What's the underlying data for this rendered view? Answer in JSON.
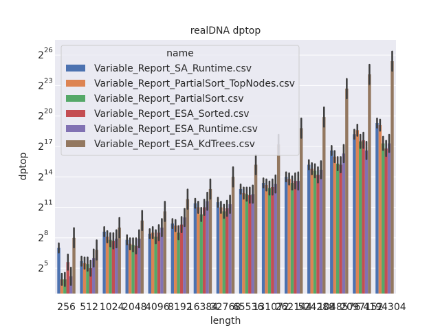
{
  "chart_data": {
    "type": "bar",
    "title": "realDNA dptop",
    "xlabel": "length",
    "ylabel": "dptop",
    "y_scale": "log2",
    "ylim_log2": [
      2.5,
      27.5
    ],
    "y_ticks": [
      {
        "base": "2",
        "exp": "5",
        "log2": 5
      },
      {
        "base": "2",
        "exp": "8",
        "log2": 8
      },
      {
        "base": "2",
        "exp": "11",
        "log2": 11
      },
      {
        "base": "2",
        "exp": "14",
        "log2": 14
      },
      {
        "base": "2",
        "exp": "17",
        "log2": 17
      },
      {
        "base": "2",
        "exp": "20",
        "log2": 20
      },
      {
        "base": "2",
        "exp": "23",
        "log2": 23
      },
      {
        "base": "2",
        "exp": "26",
        "log2": 26
      }
    ],
    "categories": [
      "256",
      "512",
      "1024",
      "2048",
      "4096",
      "8192",
      "16384",
      "32768",
      "65536",
      "131072",
      "262144",
      "524288",
      "1048576",
      "2097152",
      "4194304"
    ],
    "legend": {
      "title": "name",
      "position": "upper left"
    },
    "grid": true,
    "series": [
      {
        "name": "Variable_Report_SA_Runtime.csv",
        "color": "#4c72b0",
        "log2_values": [
          7.0,
          5.7,
          8.6,
          7.8,
          8.4,
          9.4,
          11.4,
          11.5,
          12.8,
          13.4,
          14.0,
          15.2,
          16.6,
          18.2,
          19.3
        ]
      },
      {
        "name": "Variable_Report_PartialSort_TopNodes.csv",
        "color": "#dd8452",
        "log2_values": [
          3.9,
          5.5,
          8.1,
          7.4,
          8.5,
          9.2,
          11.0,
          11.0,
          12.4,
          13.2,
          13.8,
          14.8,
          16.0,
          18.6,
          19.1
        ]
      },
      {
        "name": "Variable_Report_PartialSort.csv",
        "color": "#55a868",
        "log2_values": [
          3.9,
          5.4,
          7.8,
          7.3,
          8.1,
          8.5,
          10.3,
          10.6,
          12.3,
          12.9,
          13.4,
          14.6,
          15.3,
          17.5,
          17.3
        ]
      },
      {
        "name": "Variable_Report_ESA_Sorted.csv",
        "color": "#c44e52",
        "log2_values": [
          5.6,
          5.0,
          7.7,
          7.2,
          8.5,
          9.3,
          11.0,
          10.9,
          12.2,
          13.0,
          13.6,
          14.2,
          15.2,
          17.6,
          16.8
        ]
      },
      {
        "name": "Variable_Report_ESA_Runtime.csv",
        "color": "#8172b3",
        "log2_values": [
          4.2,
          6.0,
          7.9,
          7.9,
          9.0,
          10.0,
          11.6,
          11.3,
          12.3,
          13.3,
          13.6,
          14.7,
          16.3,
          16.6,
          17.3
        ]
      },
      {
        "name": "Variable_Report_ESA_KdTrees.csv",
        "color": "#937860",
        "log2_values": [
          8.0,
          6.8,
          9.0,
          9.7,
          10.6,
          11.8,
          12.8,
          14.0,
          15.2,
          17.2,
          18.8,
          19.9,
          22.7,
          24.1,
          25.4
        ]
      }
    ]
  }
}
